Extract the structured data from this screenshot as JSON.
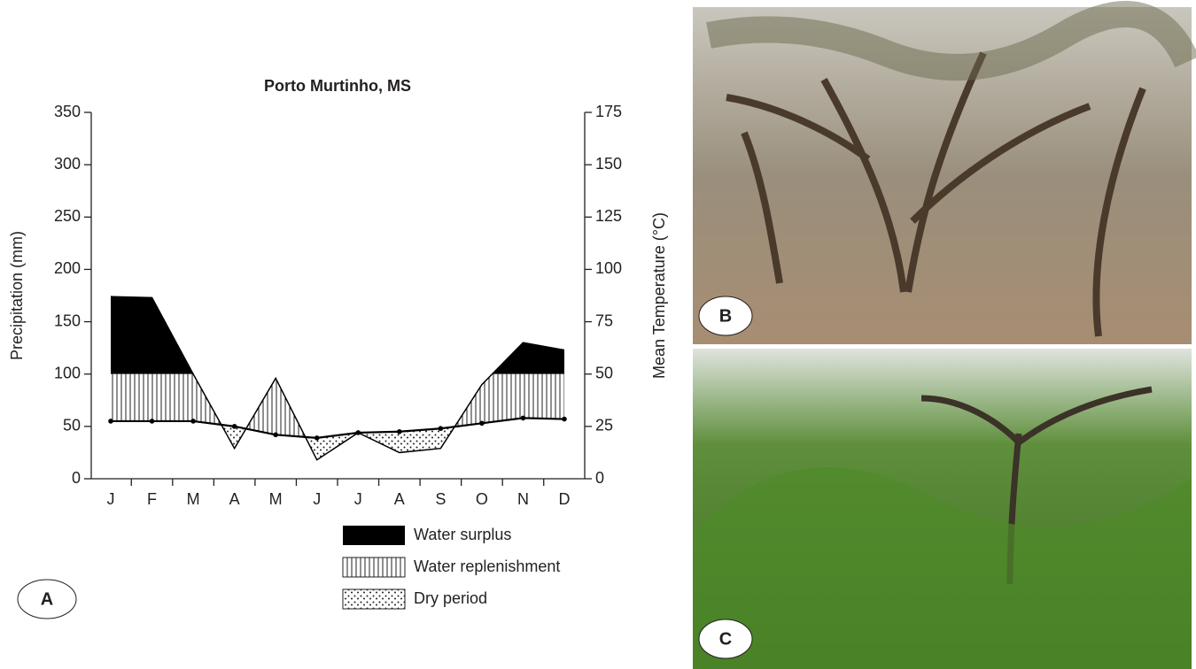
{
  "chart_data": {
    "type": "line",
    "title": "Porto Murtinho, MS",
    "y_label": "Precipitation (mm)",
    "y2_label": "Mean Temperature (°C)",
    "categories": [
      "J",
      "F",
      "M",
      "A",
      "M",
      "J",
      "J",
      "A",
      "S",
      "O",
      "N",
      "D"
    ],
    "series": [
      {
        "color": "#000000",
        "values": [
          174,
          173,
          100,
          29,
          96,
          18,
          44,
          25,
          29,
          90,
          130,
          123
        ]
      },
      {
        "color": "#000000",
        "axis": "y2",
        "values": [
          27.5,
          27.5,
          27.5,
          25,
          21,
          19.5,
          22,
          22.5,
          24,
          26.5,
          29,
          28.5
        ]
      }
    ],
    "threshold": 100,
    "ylim": [
      0,
      350
    ],
    "yticks": [
      0,
      50,
      100,
      150,
      200,
      250,
      300,
      350
    ],
    "y2lim": [
      0,
      175
    ],
    "y2ticks": [
      0,
      25,
      50,
      75,
      100,
      125,
      150,
      175
    ],
    "legend": [
      "Water surplus",
      "Water replenishment",
      "Dry period"
    ]
  },
  "panel_labels": [
    "A",
    "B",
    "C"
  ]
}
